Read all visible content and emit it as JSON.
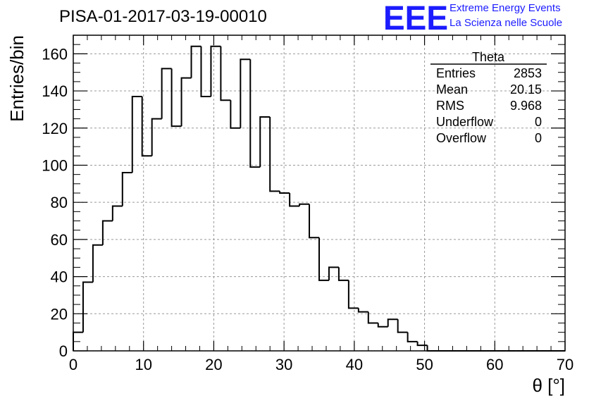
{
  "header": {
    "title": "PISA-01-2017-03-19-00010",
    "logo_text": "EEE",
    "logo_line1": "Extreme Energy Events",
    "logo_line2": "La Scienza nelle Scuole"
  },
  "stats": {
    "name": "Theta",
    "rows": [
      {
        "label": "Entries",
        "value": "2853"
      },
      {
        "label": "Mean",
        "value": "20.15"
      },
      {
        "label": "RMS",
        "value": "9.968"
      },
      {
        "label": "Underflow",
        "value": "0"
      },
      {
        "label": "Overflow",
        "value": "0"
      }
    ]
  },
  "colors": {
    "line": "#000000",
    "logo": "#1c1cff",
    "grid": "#999999"
  },
  "chart_data": {
    "type": "histogram",
    "xlabel": "θ [°]",
    "ylabel": "Entries/bin",
    "xlim": [
      0,
      70
    ],
    "ylim": [
      0,
      170
    ],
    "xticks": [
      0,
      10,
      20,
      30,
      40,
      50,
      60,
      70
    ],
    "yticks": [
      0,
      20,
      40,
      60,
      80,
      100,
      120,
      140,
      160
    ],
    "grid": true,
    "bin_width": 1.4,
    "bin_edges_start": 0,
    "values": [
      10,
      37,
      57,
      70,
      78,
      96,
      137,
      105,
      125,
      152,
      121,
      147,
      164,
      137,
      164,
      135,
      120,
      157,
      99,
      126,
      86,
      85,
      78,
      79,
      61,
      38,
      45,
      38,
      23,
      21,
      15,
      13,
      17,
      10,
      5,
      3,
      0,
      0,
      0,
      0,
      0,
      0,
      0,
      0,
      0,
      0,
      0,
      0,
      0,
      0
    ]
  }
}
